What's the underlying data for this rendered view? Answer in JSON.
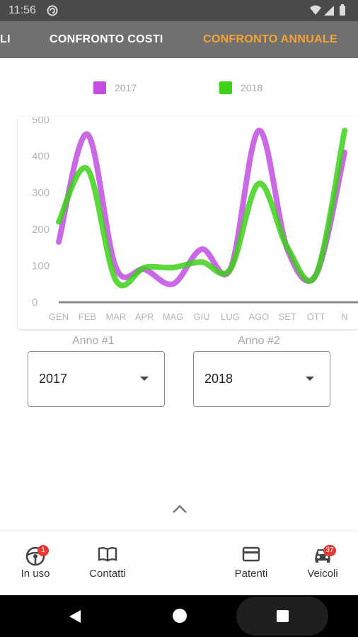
{
  "status_bar": {
    "time": "11:56",
    "icons": [
      "sync-icon",
      "wifi-icon",
      "signal-icon",
      "battery-icon"
    ]
  },
  "tabs": [
    {
      "label": "LI",
      "active": false
    },
    {
      "label": "CONFRONTO COSTI",
      "active": false
    },
    {
      "label": "CONFRONTO ANNUALE",
      "active": true
    }
  ],
  "colors": {
    "tabbar": "#707070",
    "active_tab": "#f5a431",
    "series_2017": "#c24de0",
    "series_2018": "#3dd11a",
    "badge": "#e53935"
  },
  "chart_data": {
    "type": "line",
    "categories": [
      "GEN",
      "FEB",
      "MAR",
      "APR",
      "MAG",
      "GIU",
      "LUG",
      "AGO",
      "SET",
      "OTT",
      "N"
    ],
    "series": [
      {
        "name": "2017",
        "color": "#c24de0",
        "values": [
          165,
          460,
          95,
          90,
          50,
          145,
          90,
          470,
          145,
          75,
          410
        ]
      },
      {
        "name": "2018",
        "color": "#3dd11a",
        "values": [
          220,
          365,
          60,
          95,
          95,
          110,
          90,
          325,
          150,
          75,
          470
        ]
      }
    ],
    "yticks": [
      0,
      100,
      200,
      300,
      400,
      500
    ],
    "ylim": [
      0,
      500
    ],
    "legend": "top",
    "grid": false
  },
  "selectors": {
    "year1": {
      "label": "Anno #1",
      "value": "2017"
    },
    "year2": {
      "label": "Anno #2",
      "value": "2018"
    }
  },
  "bottom_nav": [
    {
      "label": "In uso",
      "icon": "steering-wheel-icon",
      "badge": "1"
    },
    {
      "label": "Contatti",
      "icon": "book-icon",
      "badge": ""
    },
    {
      "label": "Patenti",
      "icon": "card-icon",
      "badge": ""
    },
    {
      "label": "Veicoli",
      "icon": "car-icon",
      "badge": "37"
    }
  ]
}
